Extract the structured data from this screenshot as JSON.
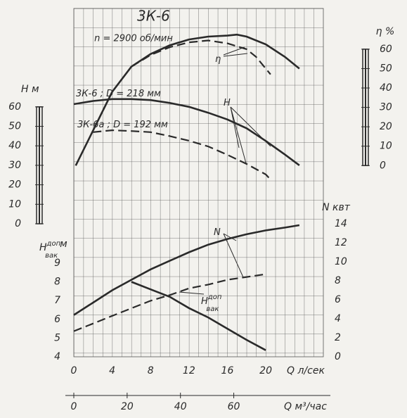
{
  "chart_data": [
    {
      "type": "line",
      "grid": true,
      "xlim": [
        0,
        26
      ],
      "ylim": [
        0,
        110.5
      ],
      "yticks": [
        0,
        10,
        20,
        30,
        40,
        50,
        60
      ],
      "y2lim": [
        -30,
        81
      ],
      "y2ticks": [
        0,
        10,
        20,
        30,
        40,
        50,
        60
      ],
      "title": "3К-6",
      "subtitle": "n = 2900 об/мин",
      "ylabel": "H м",
      "y2label": "η %",
      "annotations": [
        {
          "text": "3К-6 ; D = 218 мм"
        },
        {
          "text": "3К-6а ; D = 192 мм"
        },
        {
          "text": "η"
        },
        {
          "text": "H"
        }
      ],
      "series": [
        {
          "color": "#2a2a2a",
          "dash": false,
          "axis": "y2",
          "x": [
            0.2,
            2,
            4,
            6,
            8,
            10,
            12,
            14,
            16,
            17,
            18,
            20,
            22,
            23.5
          ],
          "values": [
            0,
            18,
            38,
            51,
            57.5,
            62,
            65,
            66.5,
            67,
            67.5,
            66.5,
            62.5,
            56,
            50
          ]
        },
        {
          "color": "#2a2a2a",
          "dash": true,
          "axis": "y2",
          "x": [
            6,
            8,
            10,
            12,
            14,
            16,
            18,
            19,
            20,
            20.5
          ],
          "values": [
            51,
            57,
            61,
            63.5,
            64.5,
            63,
            60,
            56,
            50,
            47
          ]
        },
        {
          "color": "#2a2a2a",
          "dash": false,
          "axis": "y",
          "x": [
            0,
            2,
            4,
            6,
            8,
            10,
            12,
            14,
            16,
            18,
            20,
            22,
            23.5
          ],
          "values": [
            61.4,
            63,
            64,
            64,
            63.5,
            62,
            60,
            57,
            53.5,
            49,
            42.5,
            35.5,
            30
          ]
        },
        {
          "color": "#2a2a2a",
          "dash": true,
          "axis": "y",
          "x": [
            2,
            4,
            6,
            8,
            10,
            12,
            14,
            16,
            18,
            20,
            20.5
          ],
          "values": [
            47,
            48,
            47.6,
            47,
            45,
            42.6,
            39.7,
            35.4,
            30.7,
            25.3,
            22.7
          ]
        }
      ]
    },
    {
      "type": "line",
      "grid": true,
      "xlim": [
        0,
        26
      ],
      "xticks": [
        0,
        4,
        8,
        12,
        16,
        20
      ],
      "xlabel": "Q л/сек",
      "x2lim": [
        0,
        93.6
      ],
      "x2ticks": [
        0,
        20,
        40,
        60
      ],
      "x2label": "Q м³/час",
      "ylim": [
        4,
        11.1
      ],
      "yticks": [
        4,
        5,
        6,
        7,
        8,
        9
      ],
      "y2lim": [
        0,
        14
      ],
      "y2ticks": [
        0,
        2,
        4,
        6,
        8,
        10,
        12,
        14
      ],
      "ylabel": {
        "main": "H",
        "sup": "доп",
        "sub": "вак",
        "unit": "м"
      },
      "y2label": "N квт",
      "annotations": [
        {
          "text": "N"
        },
        {
          "text": "H",
          "sup": "доп",
          "sub": "вак"
        }
      ],
      "series": [
        {
          "color": "#2a2a2a",
          "dash": false,
          "axis": "y2",
          "x": [
            0,
            2,
            4,
            6,
            8,
            10,
            12,
            14,
            16,
            18,
            20,
            22,
            23.5
          ],
          "values": [
            4.4,
            5.7,
            7,
            8.1,
            9.2,
            10.1,
            11,
            11.8,
            12.4,
            12.9,
            13.3,
            13.6,
            13.85
          ]
        },
        {
          "color": "#2a2a2a",
          "dash": true,
          "axis": "y2",
          "x": [
            0,
            2,
            4,
            6,
            8,
            10,
            12,
            14,
            16,
            18,
            20
          ],
          "values": [
            2.7,
            3.5,
            4.3,
            5.1,
            5.9,
            6.5,
            7.2,
            7.6,
            8.1,
            8.4,
            8.7
          ]
        },
        {
          "color": "#2a2a2a",
          "dash": false,
          "axis": "y",
          "x": [
            6,
            8,
            10,
            12,
            14,
            16,
            18,
            20
          ],
          "values": [
            8,
            7.6,
            7.2,
            6.6,
            6.1,
            5.5,
            4.9,
            4.35
          ]
        }
      ]
    }
  ]
}
